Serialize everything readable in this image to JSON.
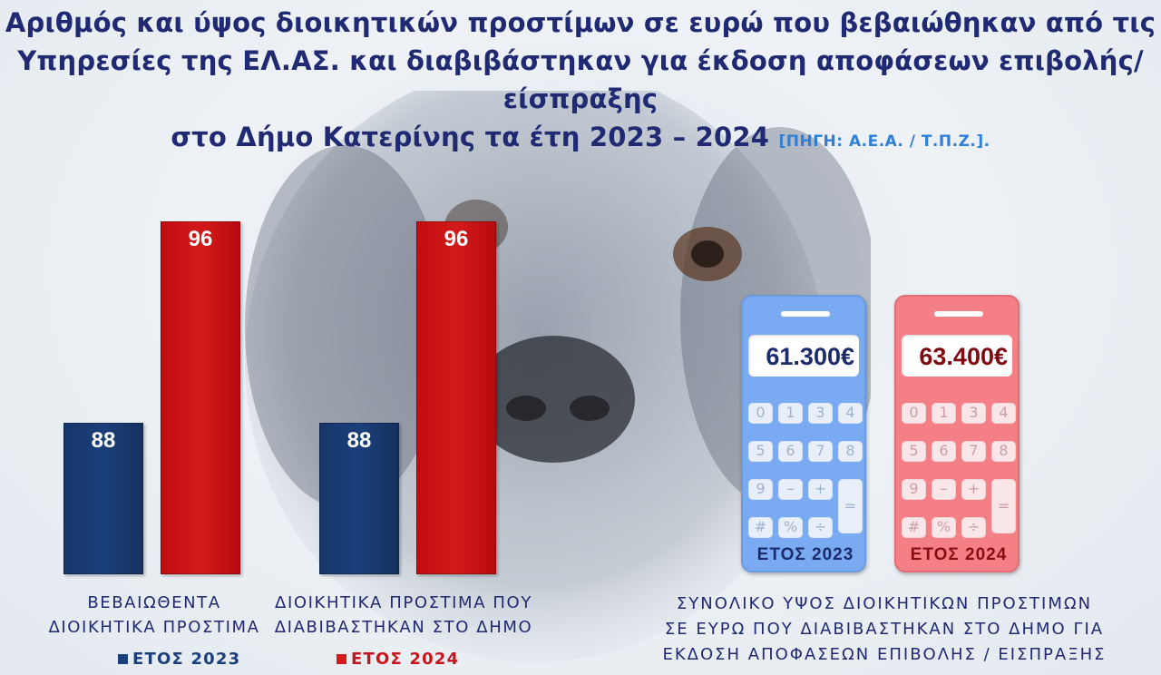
{
  "title": {
    "line1": "Αριθμός και ύψος διοικητικών προστίμων σε ευρώ που βεβαιώθηκαν από τις",
    "line2": "Υπηρεσίες της ΕΛ.ΑΣ. και διαβιβάστηκαν για έκδοση αποφάσεων επιβολής/είσπραξης",
    "line3": "στο Δήμο Κατερίνης τα έτη 2023 – 2024",
    "source": "[ΠΗΓΗ: Α.Ε.Α. / Τ.Π.Ζ.]."
  },
  "chart_data": {
    "type": "bar",
    "categories": [
      "ΒΕΒΑΙΩΘΕΝΤΑ ΔΙΟΙΚΗΤΙΚΑ ΠΡΟΣΤΙΜΑ",
      "ΔΙΟΙΚΗΤΙΚΑ ΠΡΟΣΤΙΜΑ ΠΟΥ ΔΙΑΒΙΒΑΣΤΗΚΑΝ ΣΤΟ ΔΗΜΟ"
    ],
    "category_lines": [
      [
        "ΒΕΒΑΙΩΘΕΝΤΑ",
        "ΔΙΟΙΚΗΤΙΚΑ ΠΡΟΣΤΙΜΑ"
      ],
      [
        "ΔΙΟΙΚΗΤΙΚΑ ΠΡΟΣΤΙΜΑ ΠΟΥ",
        "ΔΙΑΒΙΒΑΣΤΗΚΑΝ ΣΤΟ ΔΗΜΟ"
      ]
    ],
    "series": [
      {
        "name": "ΕΤΟΣ 2023",
        "values": [
          88,
          88
        ],
        "color": "#1b3f7a"
      },
      {
        "name": "ΕΤΟΣ 2024",
        "values": [
          96,
          96
        ],
        "color": "#d41a1a"
      }
    ],
    "ylim": [
      0,
      100
    ],
    "grid": false,
    "legend_position": "bottom"
  },
  "totals": {
    "y2023": {
      "amount": "61.300€",
      "label": "ΕΤΟΣ 2023",
      "color": "#7aabf2"
    },
    "y2024": {
      "amount": "63.400€",
      "label": "ΕΤΟΣ 2024",
      "color": "#f57f86"
    },
    "caption": [
      "ΣΥΝΟΛΙΚΟ ΥΨΟΣ ΔΙΟΙΚΗΤΙΚΩΝ ΠΡΟΣΤΙΜΩΝ",
      "ΣΕ ΕΥΡΩ ΠΟΥ ΔΙΑΒΙΒΑΣΤΗΚΑΝ ΣΤΟ ΔΗΜΟ ΓΙΑ",
      "ΕΚΔΟΣΗ ΑΠΟΦΑΣΕΩΝ ΕΠΙΒΟΛΗΣ / ΕΙΣΠΡΑΞΗΣ"
    ]
  },
  "calculator_keys": [
    "0",
    "1",
    "3",
    "4",
    "5",
    "6",
    "7",
    "8",
    "9",
    "–",
    "+",
    "#",
    "%",
    "÷",
    "="
  ],
  "icons": {
    "calculator": "calculator-icon",
    "background": "dog-photo"
  }
}
